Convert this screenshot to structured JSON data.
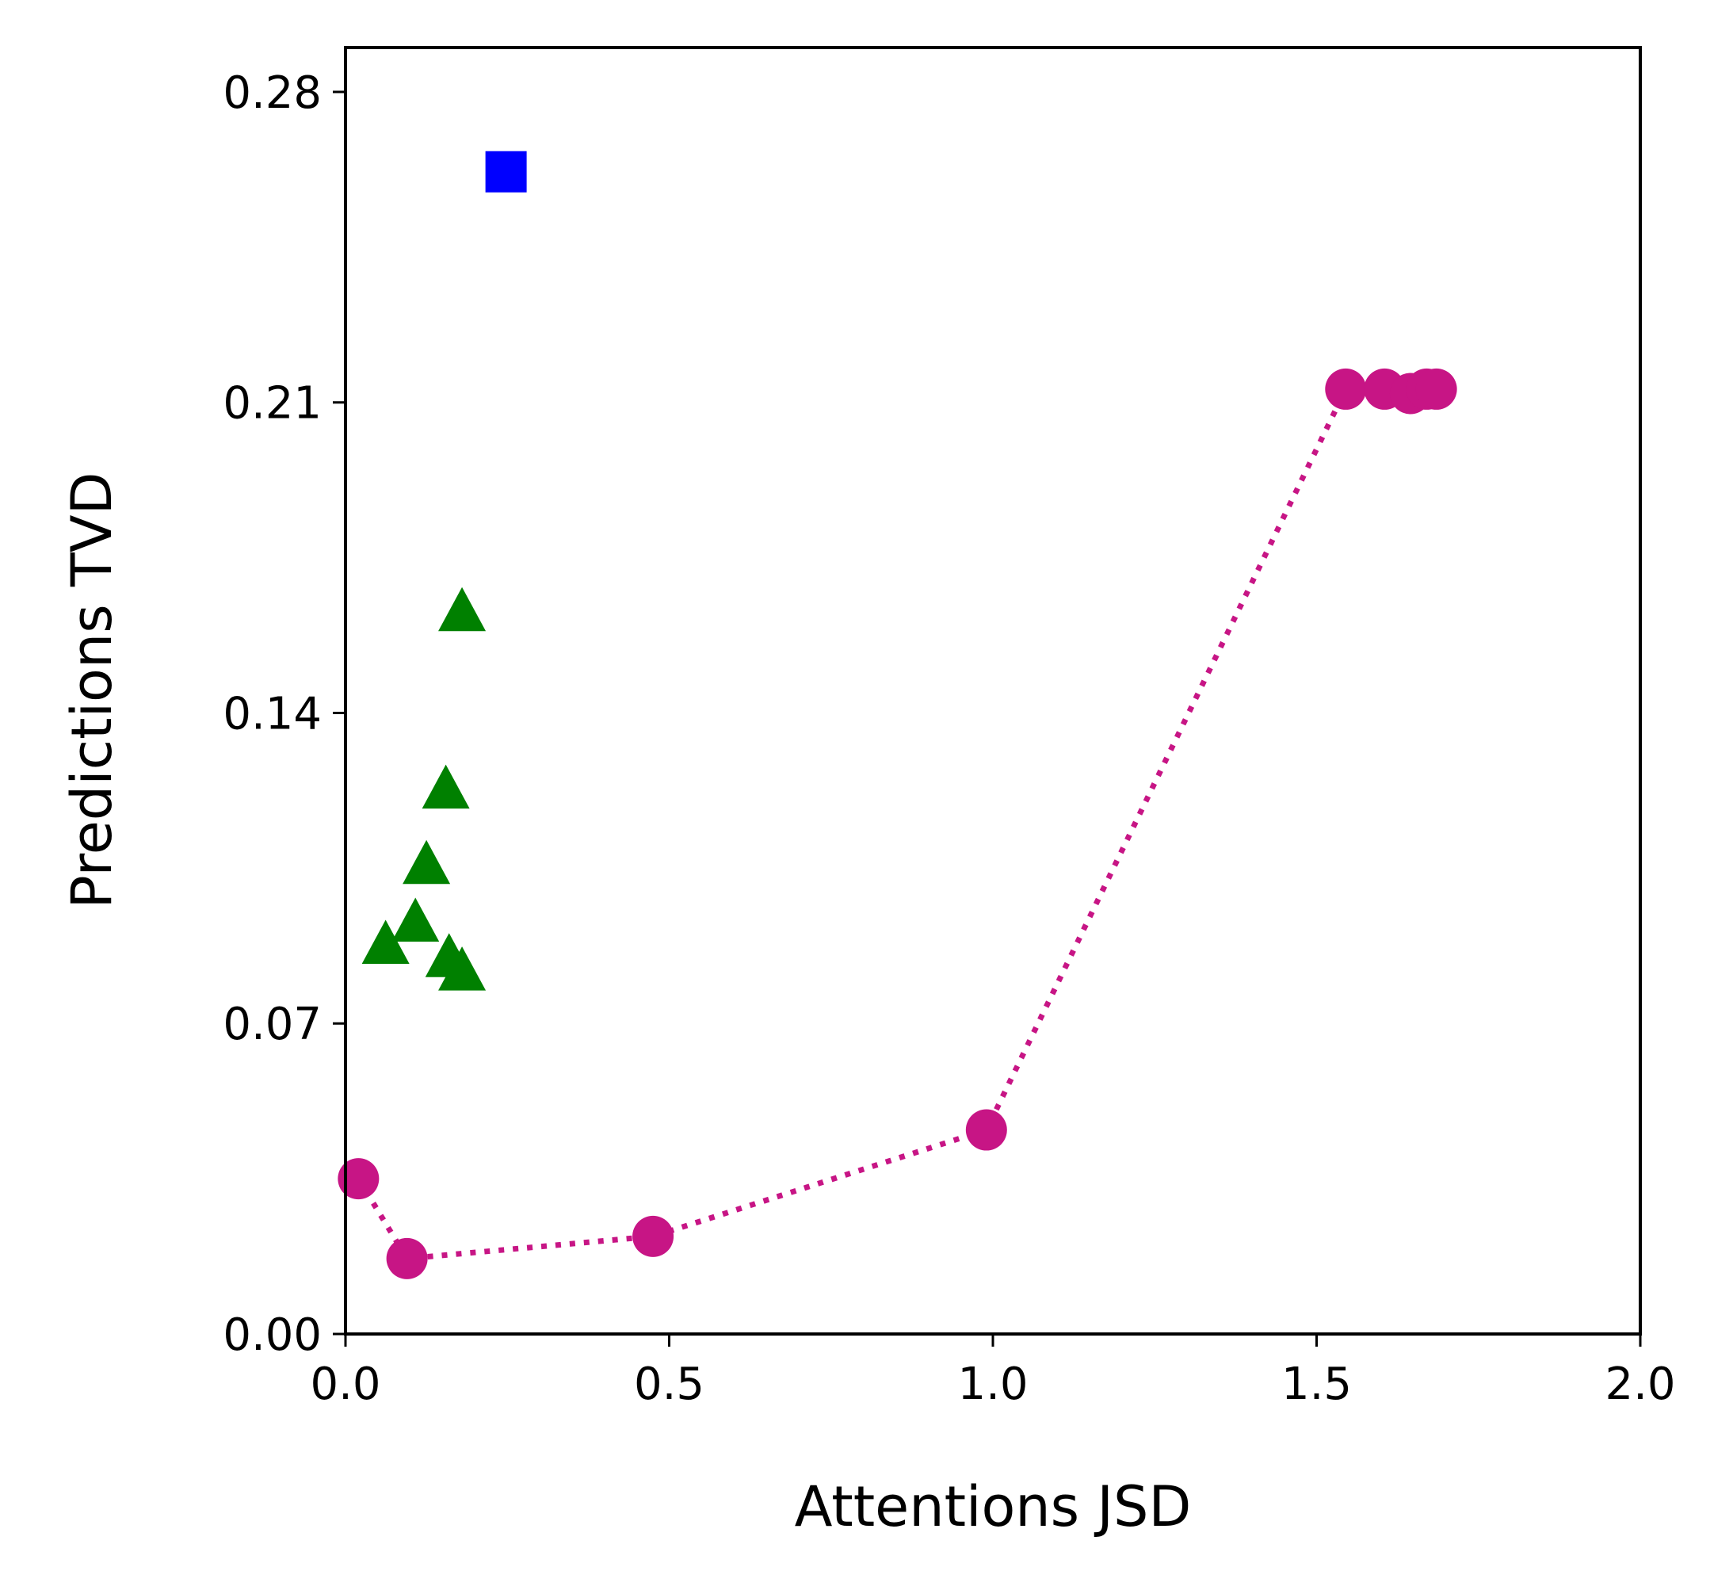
{
  "chart_data": {
    "type": "scatter",
    "title": "",
    "xlabel": "Attentions JSD",
    "ylabel": "Predictions TVD",
    "xlim": [
      0.0,
      2.0
    ],
    "ylim": [
      0.0,
      0.29
    ],
    "xticks": [
      0.0,
      0.5,
      1.0,
      1.5,
      2.0
    ],
    "xtick_labels": [
      "0.0",
      "0.5",
      "1.0",
      "1.5",
      "2.0"
    ],
    "yticks": [
      0.0,
      0.07,
      0.14,
      0.21,
      0.28
    ],
    "ytick_labels": [
      "0.00",
      "0.07",
      "0.14",
      "0.21",
      "0.28"
    ],
    "grid": false,
    "legend": "none",
    "series": [
      {
        "name": "circles",
        "marker": "circle",
        "color": "#c71585",
        "line": "dotted",
        "points": [
          {
            "x": 0.02,
            "y": 0.035
          },
          {
            "x": 0.095,
            "y": 0.017
          },
          {
            "x": 0.475,
            "y": 0.022
          },
          {
            "x": 0.99,
            "y": 0.046
          },
          {
            "x": 1.545,
            "y": 0.213
          },
          {
            "x": 1.605,
            "y": 0.213
          },
          {
            "x": 1.645,
            "y": 0.212
          },
          {
            "x": 1.67,
            "y": 0.213
          },
          {
            "x": 1.685,
            "y": 0.213
          }
        ]
      },
      {
        "name": "triangles",
        "marker": "triangle",
        "color": "#008000",
        "line": "none",
        "points": [
          {
            "x": 0.18,
            "y": 0.163
          },
          {
            "x": 0.155,
            "y": 0.123
          },
          {
            "x": 0.125,
            "y": 0.106
          },
          {
            "x": 0.108,
            "y": 0.093
          },
          {
            "x": 0.062,
            "y": 0.088
          },
          {
            "x": 0.16,
            "y": 0.085
          },
          {
            "x": 0.18,
            "y": 0.082
          }
        ]
      },
      {
        "name": "square",
        "marker": "square",
        "color": "#0000ff",
        "line": "none",
        "points": [
          {
            "x": 0.248,
            "y": 0.262
          }
        ]
      }
    ]
  }
}
